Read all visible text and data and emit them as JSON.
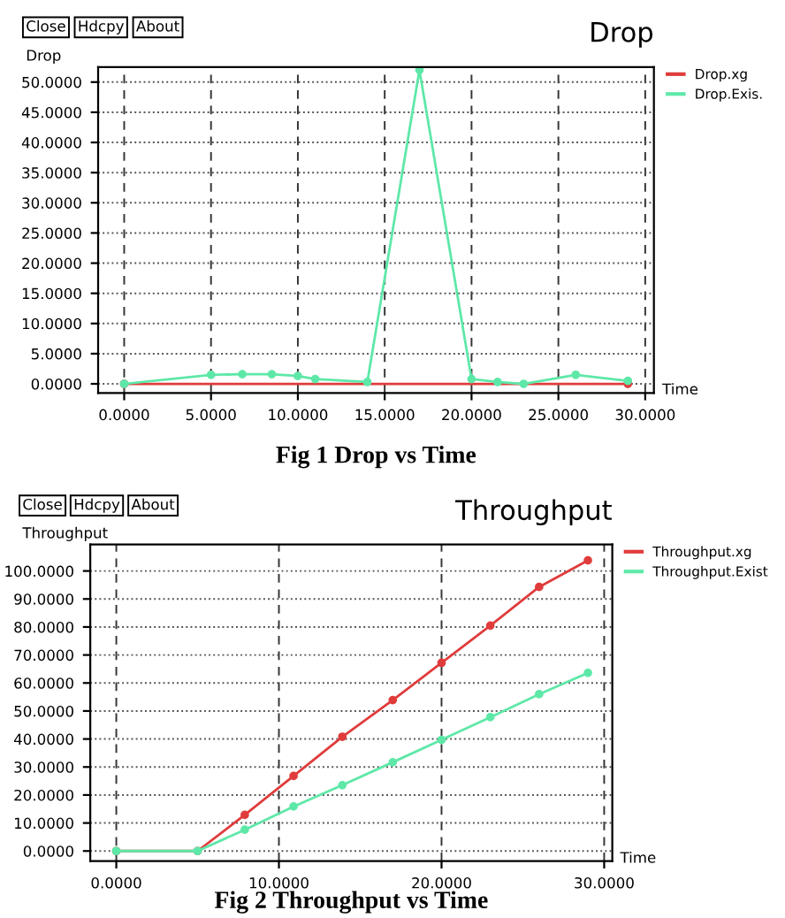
{
  "chart_data": [
    {
      "type": "line",
      "title": "Drop",
      "ylabel": "Drop",
      "xlabel": "Time",
      "annotations": [
        "Close",
        "Hdcpy",
        "About",
        "Fig 1 Drop vs Time"
      ],
      "xlim": [
        -1.5,
        30.5
      ],
      "ylim": [
        -1.5,
        52.5
      ],
      "xticks": [
        {
          "value": 0,
          "label": "0.0000"
        },
        {
          "value": 5,
          "label": "5.0000"
        },
        {
          "value": 10,
          "label": "10.0000"
        },
        {
          "value": 15,
          "label": "15.0000"
        },
        {
          "value": 20,
          "label": "20.0000"
        },
        {
          "value": 25,
          "label": "25.0000"
        },
        {
          "value": 30,
          "label": "30.0000"
        }
      ],
      "yticks": [
        {
          "value": 0,
          "label": "0.0000"
        },
        {
          "value": 5,
          "label": "5.0000"
        },
        {
          "value": 10,
          "label": "10.0000"
        },
        {
          "value": 15,
          "label": "15.0000"
        },
        {
          "value": 20,
          "label": "20.0000"
        },
        {
          "value": 25,
          "label": "25.0000"
        },
        {
          "value": 30,
          "label": "30.0000"
        },
        {
          "value": 35,
          "label": "35.0000"
        },
        {
          "value": 40,
          "label": "40.0000"
        },
        {
          "value": 45,
          "label": "45.0000"
        },
        {
          "value": 50,
          "label": "50.0000"
        }
      ],
      "grid": true,
      "legend": "right",
      "marker": "circle",
      "series": [
        {
          "name": "Drop.xg",
          "color": "#e03c3c",
          "x": [
            0,
            29
          ],
          "values": [
            0,
            0
          ]
        },
        {
          "name": "Drop.Exis.",
          "color": "#5ee8a8",
          "x": [
            0,
            5,
            6.8,
            8.5,
            10,
            11,
            14,
            17,
            20,
            21.5,
            23,
            26,
            29
          ],
          "values": [
            0,
            1.5,
            1.6,
            1.6,
            1.3,
            0.8,
            0.3,
            52,
            0.8,
            0.3,
            0,
            1.5,
            0.5
          ]
        }
      ]
    },
    {
      "type": "line",
      "title": "Throughput",
      "ylabel": "Throughput",
      "xlabel": "Time",
      "annotations": [
        "Close",
        "Hdcpy",
        "About",
        "Fig 2 Throughput vs Time"
      ],
      "xlim": [
        -1.6,
        30.5
      ],
      "ylim": [
        -3.6,
        109.5
      ],
      "xticks": [
        {
          "value": 0,
          "label": "0.0000"
        },
        {
          "value": 10,
          "label": "10.0000"
        },
        {
          "value": 20,
          "label": "20.0000"
        },
        {
          "value": 30,
          "label": "30.0000"
        }
      ],
      "yticks": [
        {
          "value": 0,
          "label": "0.0000"
        },
        {
          "value": 10,
          "label": "10.0000"
        },
        {
          "value": 20,
          "label": "20.0000"
        },
        {
          "value": 30,
          "label": "30.0000"
        },
        {
          "value": 40,
          "label": "40.0000"
        },
        {
          "value": 50,
          "label": "50.0000"
        },
        {
          "value": 60,
          "label": "60.0000"
        },
        {
          "value": 70,
          "label": "70.0000"
        },
        {
          "value": 80,
          "label": "80.0000"
        },
        {
          "value": 90,
          "label": "90.0000"
        },
        {
          "value": 100,
          "label": "100.0000"
        }
      ],
      "grid": true,
      "legend": "right",
      "marker": "circle",
      "series": [
        {
          "name": "Throughput.xg",
          "color": "#e03c3c",
          "x": [
            0,
            5,
            7.9,
            10.9,
            13.9,
            17,
            20,
            23,
            26,
            29
          ],
          "values": [
            0,
            0,
            12.9,
            26.8,
            40.8,
            53.9,
            67.2,
            80.5,
            94.3,
            103.8
          ]
        },
        {
          "name": "Throughput.Exist",
          "color": "#5ee8a8",
          "x": [
            0,
            5,
            7.9,
            10.9,
            13.9,
            17,
            20,
            23,
            26,
            29
          ],
          "values": [
            0,
            0,
            7.6,
            15.9,
            23.5,
            31.7,
            39.7,
            47.8,
            56.0,
            63.6
          ]
        }
      ]
    }
  ]
}
